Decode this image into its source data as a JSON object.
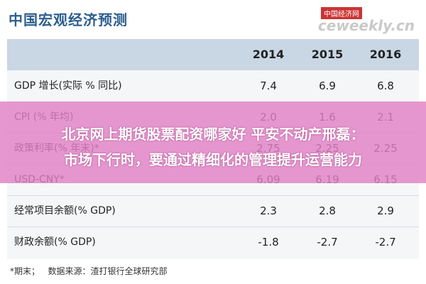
{
  "header": {
    "title": "中国宏观经济预测",
    "logo": "中国经济网",
    "site": "ceweekly.cn"
  },
  "table": {
    "columns": [
      "2014",
      "2015",
      "2016"
    ],
    "rows": [
      [
        "GDP 增长(实际 % 同比)",
        "7.4",
        "6.9",
        "6.8"
      ],
      [
        "CPI (% 年均)",
        "2.0",
        "1.6",
        "2.1"
      ],
      [
        "政策利率(% 年末)*",
        "2.75",
        "2.25",
        "2.25"
      ],
      [
        "USD-CNY*",
        "6.09",
        "6.19",
        "6.15"
      ],
      [
        "经常项目余额(% GDP)",
        "2.3",
        "2.8",
        "2.9"
      ],
      [
        "财政余额(% GDP)",
        "-1.8",
        "-2.7",
        "-2.7"
      ]
    ]
  },
  "footer": {
    "note": "*期末；",
    "source": "数据来源：渣打银行全球研究部"
  },
  "banner": {
    "lines": [
      "北京网上期货股票配资哪家好 平安不动产邢磊：",
      "市场下行时，要通过精细化的管理提升运营能力"
    ]
  }
}
